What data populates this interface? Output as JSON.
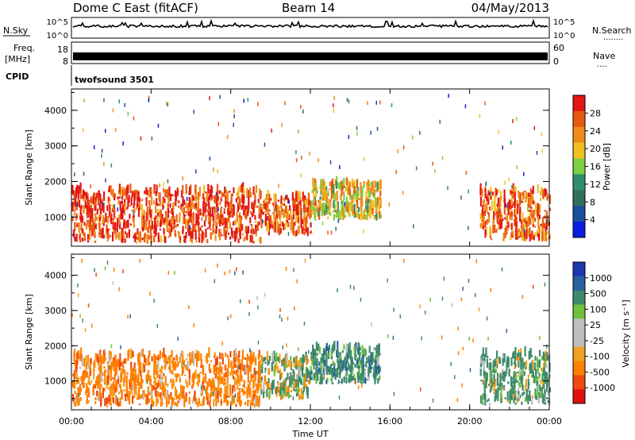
{
  "header": {
    "station": "Dome C East (fitACF)",
    "beam": "Beam 14",
    "date": "04/May/2013"
  },
  "strip_panels": {
    "nsky": {
      "label": "N.Sky",
      "ticks": [
        "10^5",
        "10^0"
      ]
    },
    "nsearch": {
      "label": "N.Search",
      "ticks": [
        "10^5",
        "10^0"
      ],
      "dots": "........"
    },
    "freq": {
      "label_1": "Freq.",
      "label_2": "[MHz]",
      "ticks": [
        "18",
        "8"
      ]
    },
    "nave": {
      "label": "Nave",
      "ticks": [
        "60",
        "0"
      ],
      "dots": "...."
    },
    "cpid": {
      "label": "CPID",
      "mode": "twofsound 3501"
    }
  },
  "colors": {
    "power_scale": [
      "#0b1de0",
      "#1b4f9f",
      "#33705a",
      "#2f8f6a",
      "#7fcf43",
      "#f0c020",
      "#f08c1a",
      "#e85a12",
      "#e31616"
    ],
    "velocity_scale": [
      "#1c38b0",
      "#2a5fa0",
      "#3f8a6a",
      "#6ec13c",
      "#bfbfbf",
      "#bdbdbd",
      "#f0a020",
      "#ff8000",
      "#f04a10",
      "#e01010"
    ]
  },
  "chart_data": [
    {
      "type": "heatmap",
      "name": "power",
      "xlabel": "",
      "ylabel": "Slant Range [km]",
      "xlim": [
        0,
        24
      ],
      "ylim": [
        180,
        4600
      ],
      "yticks": [
        "1000",
        "2000",
        "3000",
        "4000"
      ],
      "colorbar": {
        "label": "Power [dB]",
        "ticks": [
          "28",
          "24",
          "20",
          "16",
          "12",
          "8",
          "4"
        ],
        "range": [
          0,
          32
        ]
      },
      "echo_regions": [
        {
          "t_start": 0.0,
          "t_end": 9.5,
          "range_min": 250,
          "range_max": 1700,
          "dominant": 28
        },
        {
          "t_start": 9.5,
          "t_end": 12.0,
          "range_min": 450,
          "range_max": 1500,
          "dominant": 26
        },
        {
          "t_start": 12.0,
          "t_end": 15.5,
          "range_min": 900,
          "range_max": 1900,
          "dominant": 20
        },
        {
          "t_start": 20.5,
          "t_end": 24.0,
          "range_min": 300,
          "range_max": 1700,
          "dominant": 26
        }
      ]
    },
    {
      "type": "heatmap",
      "name": "velocity",
      "xlabel": "Time UT",
      "ylabel": "Slant Range [km]",
      "xlim": [
        0,
        24
      ],
      "ylim": [
        180,
        4600
      ],
      "xticks": [
        "00:00",
        "04:00",
        "08:00",
        "12:00",
        "16:00",
        "20:00",
        "00:00"
      ],
      "yticks": [
        "1000",
        "2000",
        "3000",
        "4000"
      ],
      "colorbar": {
        "label": "Velocity [m s⁻¹]",
        "ticks": [
          "1000",
          "500",
          "100",
          "25",
          "-25",
          "-100",
          "-500",
          "-1000"
        ]
      },
      "echo_regions": [
        {
          "t_start": 0.0,
          "t_end": 9.5,
          "range_min": 250,
          "range_max": 1700,
          "dominant": -300
        },
        {
          "t_start": 9.5,
          "t_end": 12.0,
          "range_min": 450,
          "range_max": 1600,
          "dominant": 100
        },
        {
          "t_start": 12.0,
          "t_end": 15.5,
          "range_min": 900,
          "range_max": 1900,
          "dominant": 300
        },
        {
          "t_start": 20.5,
          "t_end": 24.0,
          "range_min": 300,
          "range_max": 1700,
          "dominant": 200
        }
      ]
    }
  ]
}
